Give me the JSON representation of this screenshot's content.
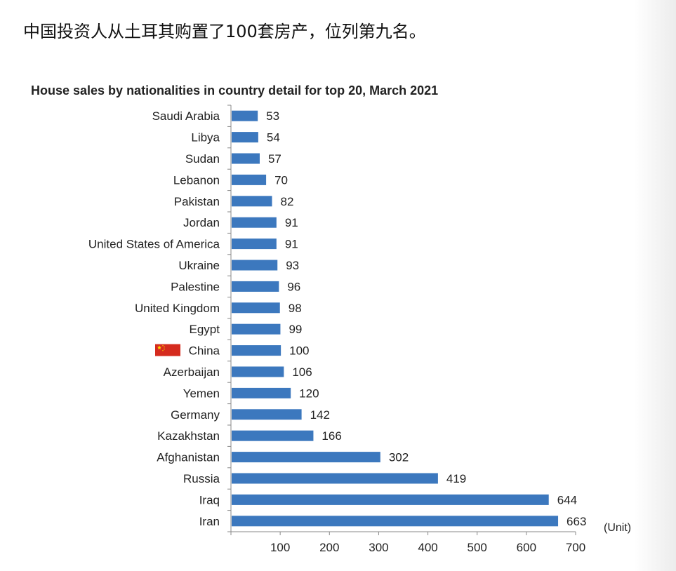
{
  "headline": "中国投资人从土耳其购置了100套房产，位列第九名。",
  "colors": {
    "bar": "#3c78be",
    "axis": "#8a8a8a",
    "flag_red": "#d52b1e",
    "flag_star": "#ffde00"
  },
  "chart_data": {
    "type": "bar",
    "orientation": "horizontal",
    "title": "House sales by nationalities in country detail for top 20, March 2021",
    "unit_label": "(Unit)",
    "categories": [
      "Saudi Arabia",
      "Libya",
      "Sudan",
      "Lebanon",
      "Pakistan",
      "Jordan",
      "United States of America",
      "Ukraine",
      "Palestine",
      "United Kingdom",
      "Egypt",
      "China",
      "Azerbaijan",
      "Yemen",
      "Germany",
      "Kazakhstan",
      "Afghanistan",
      "Russia",
      "Iraq",
      "Iran"
    ],
    "values": [
      53,
      54,
      57,
      70,
      82,
      91,
      91,
      93,
      96,
      98,
      99,
      100,
      106,
      120,
      142,
      166,
      302,
      419,
      644,
      663
    ],
    "xlim": [
      0,
      700
    ],
    "xticks": [
      100,
      200,
      300,
      400,
      500,
      600,
      700
    ],
    "highlight_category": "China",
    "highlight_icon": "china-flag-icon",
    "grid": false,
    "legend": "none",
    "data_labels": true
  }
}
